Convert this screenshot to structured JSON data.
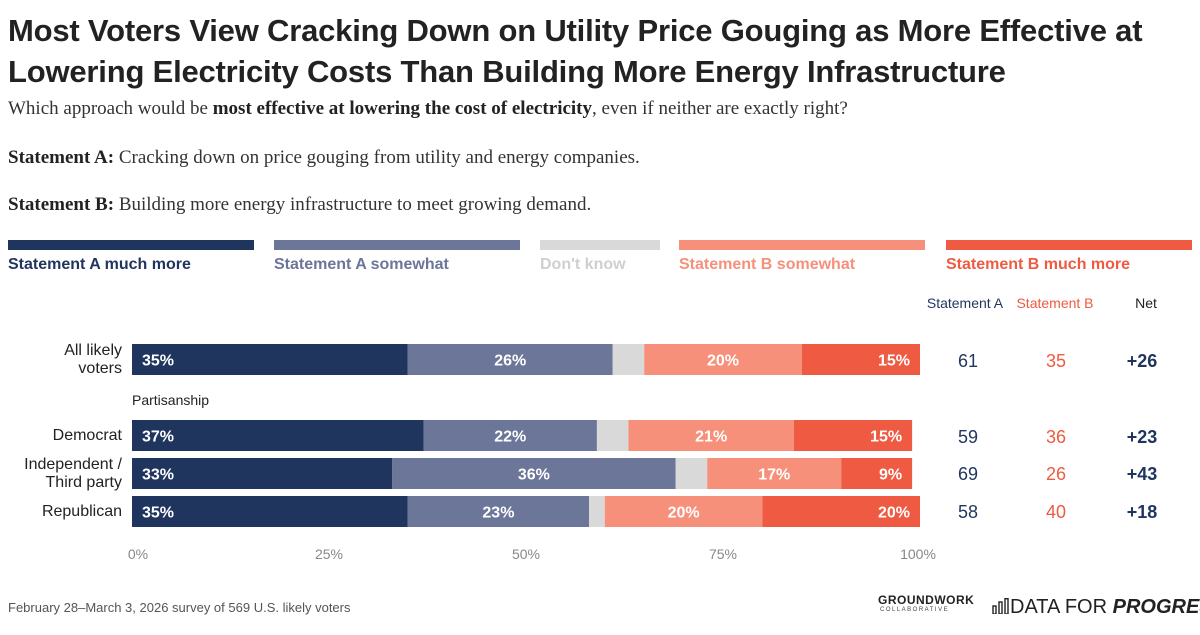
{
  "title": "Most Voters View Cracking Down on Utility Price Gouging as More Effective at Lowering Electricity Costs Than Building More Energy Infrastructure",
  "question": {
    "pre": "Which approach would be ",
    "bold": "most effective at lowering the cost of electricity",
    "post": ", even if neither are exactly right?"
  },
  "statement_a": {
    "label": "Statement A:",
    "text": " Cracking down on price gouging from utility and energy companies."
  },
  "statement_b": {
    "label": "Statement B:",
    "text": " Building more energy infrastructure to meet growing demand."
  },
  "colors": {
    "a_much": "#1f355e",
    "a_some": "#6b7698",
    "dont_know": "#d9d9d9",
    "b_some": "#f7907a",
    "b_much": "#ee5a42",
    "legend_dk_text": "#cfcfcf"
  },
  "legend": [
    {
      "key": "a_much",
      "label": "Statement A much more"
    },
    {
      "key": "a_some",
      "label": "Statement A somewhat"
    },
    {
      "key": "dont_know",
      "label": "Don't know"
    },
    {
      "key": "b_some",
      "label": "Statement B somewhat"
    },
    {
      "key": "b_much",
      "label": "Statement B much more"
    }
  ],
  "column_headers": {
    "a": "Statement A",
    "b": "Statement B",
    "net": "Net"
  },
  "section_label": "Partisanship",
  "chart_data": {
    "type": "bar",
    "orientation": "horizontal-stacked",
    "categories": [
      "All likely voters",
      "Democrat",
      "Independent / Third party",
      "Republican"
    ],
    "series": [
      {
        "name": "Statement A much more",
        "key": "a_much",
        "values": [
          35,
          37,
          33,
          35
        ]
      },
      {
        "name": "Statement A somewhat",
        "key": "a_some",
        "values": [
          26,
          22,
          36,
          23
        ]
      },
      {
        "name": "Don't know",
        "key": "dont_know",
        "values": [
          4,
          4,
          4,
          2
        ]
      },
      {
        "name": "Statement B somewhat",
        "key": "b_some",
        "values": [
          20,
          21,
          17,
          20
        ]
      },
      {
        "name": "Statement B much more",
        "key": "b_much",
        "values": [
          15,
          15,
          9,
          20
        ]
      }
    ],
    "data_labels": [
      [
        "35%",
        "26%",
        "",
        "20%",
        "15%"
      ],
      [
        "37%",
        "22%",
        "",
        "21%",
        "15%"
      ],
      [
        "33%",
        "36%",
        "",
        "17%",
        "9%"
      ],
      [
        "35%",
        "23%",
        "",
        "20%",
        "20%"
      ]
    ],
    "row_label_lines": [
      [
        "All likely",
        "voters"
      ],
      [
        "Democrat"
      ],
      [
        "Independent /",
        "Third party"
      ],
      [
        "Republican"
      ]
    ],
    "statement_a_totals": [
      "61",
      "59",
      "69",
      "58"
    ],
    "statement_b_totals": [
      "35",
      "36",
      "26",
      "40"
    ],
    "net": [
      "+26",
      "+23",
      "+43",
      "+18"
    ],
    "xlim": [
      0,
      100
    ],
    "xticks": [
      "0%",
      "25%",
      "50%",
      "75%",
      "100%"
    ]
  },
  "footer": "February 28–March 3, 2026 survey of 569 U.S. likely voters",
  "logos": {
    "groundwork": "GROUNDWORK",
    "groundwork_sub": "COLLABORATIVE",
    "dfp_plain": "DATA FOR ",
    "dfp_italic": "PROGRESS"
  }
}
